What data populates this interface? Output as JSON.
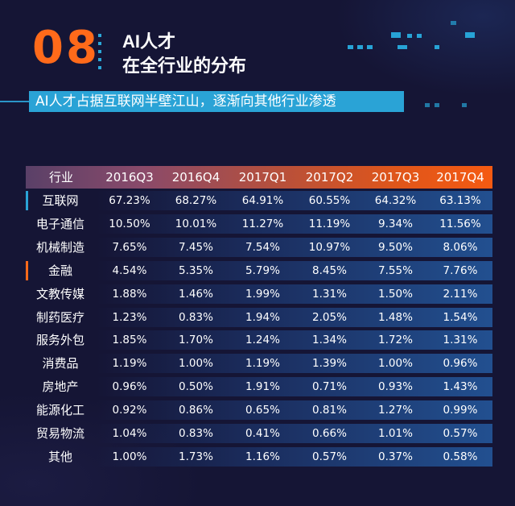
{
  "header": {
    "section_number": "08",
    "title_line1": "AI人才",
    "title_line2": "在全行业的分布",
    "subtitle": "AI人才占据互联网半壁江山，逐渐向其他行业渗透"
  },
  "colors": {
    "background": "#151535",
    "accent_orange": "#ff6a1a",
    "accent_blue": "#2aa3d6"
  },
  "chart_data": {
    "type": "table",
    "title": "AI人才在全行业的分布",
    "columns": [
      "行业",
      "2016Q3",
      "2016Q4",
      "2017Q1",
      "2017Q2",
      "2017Q3",
      "2017Q4"
    ],
    "rows": [
      {
        "industry": "互联网",
        "values": [
          "67.23%",
          "68.27%",
          "64.91%",
          "60.55%",
          "64.32%",
          "63.13%"
        ]
      },
      {
        "industry": "电子通信",
        "values": [
          "10.50%",
          "10.01%",
          "11.27%",
          "11.19%",
          "9.34%",
          "11.56%"
        ]
      },
      {
        "industry": "机械制造",
        "values": [
          "7.65%",
          "7.45%",
          "7.54%",
          "10.97%",
          "9.50%",
          "8.06%"
        ]
      },
      {
        "industry": "金融",
        "values": [
          "4.54%",
          "5.35%",
          "5.79%",
          "8.45%",
          "7.55%",
          "7.76%"
        ]
      },
      {
        "industry": "文教传媒",
        "values": [
          "1.88%",
          "1.46%",
          "1.99%",
          "1.31%",
          "1.50%",
          "2.11%"
        ]
      },
      {
        "industry": "制药医疗",
        "values": [
          "1.23%",
          "0.83%",
          "1.94%",
          "2.05%",
          "1.48%",
          "1.54%"
        ]
      },
      {
        "industry": "服务外包",
        "values": [
          "1.85%",
          "1.70%",
          "1.24%",
          "1.34%",
          "1.72%",
          "1.31%"
        ]
      },
      {
        "industry": "消费品",
        "values": [
          "1.19%",
          "1.00%",
          "1.19%",
          "1.39%",
          "1.00%",
          "0.96%"
        ]
      },
      {
        "industry": "房地产",
        "values": [
          "0.96%",
          "0.50%",
          "1.91%",
          "0.71%",
          "0.93%",
          "1.43%"
        ]
      },
      {
        "industry": "能源化工",
        "values": [
          "0.92%",
          "0.86%",
          "0.65%",
          "0.81%",
          "1.27%",
          "0.99%"
        ]
      },
      {
        "industry": "贸易物流",
        "values": [
          "1.04%",
          "0.83%",
          "0.41%",
          "0.66%",
          "1.01%",
          "0.57%"
        ]
      },
      {
        "industry": "其他",
        "values": [
          "1.00%",
          "1.73%",
          "1.16%",
          "0.57%",
          "0.37%",
          "0.58%"
        ]
      }
    ]
  }
}
